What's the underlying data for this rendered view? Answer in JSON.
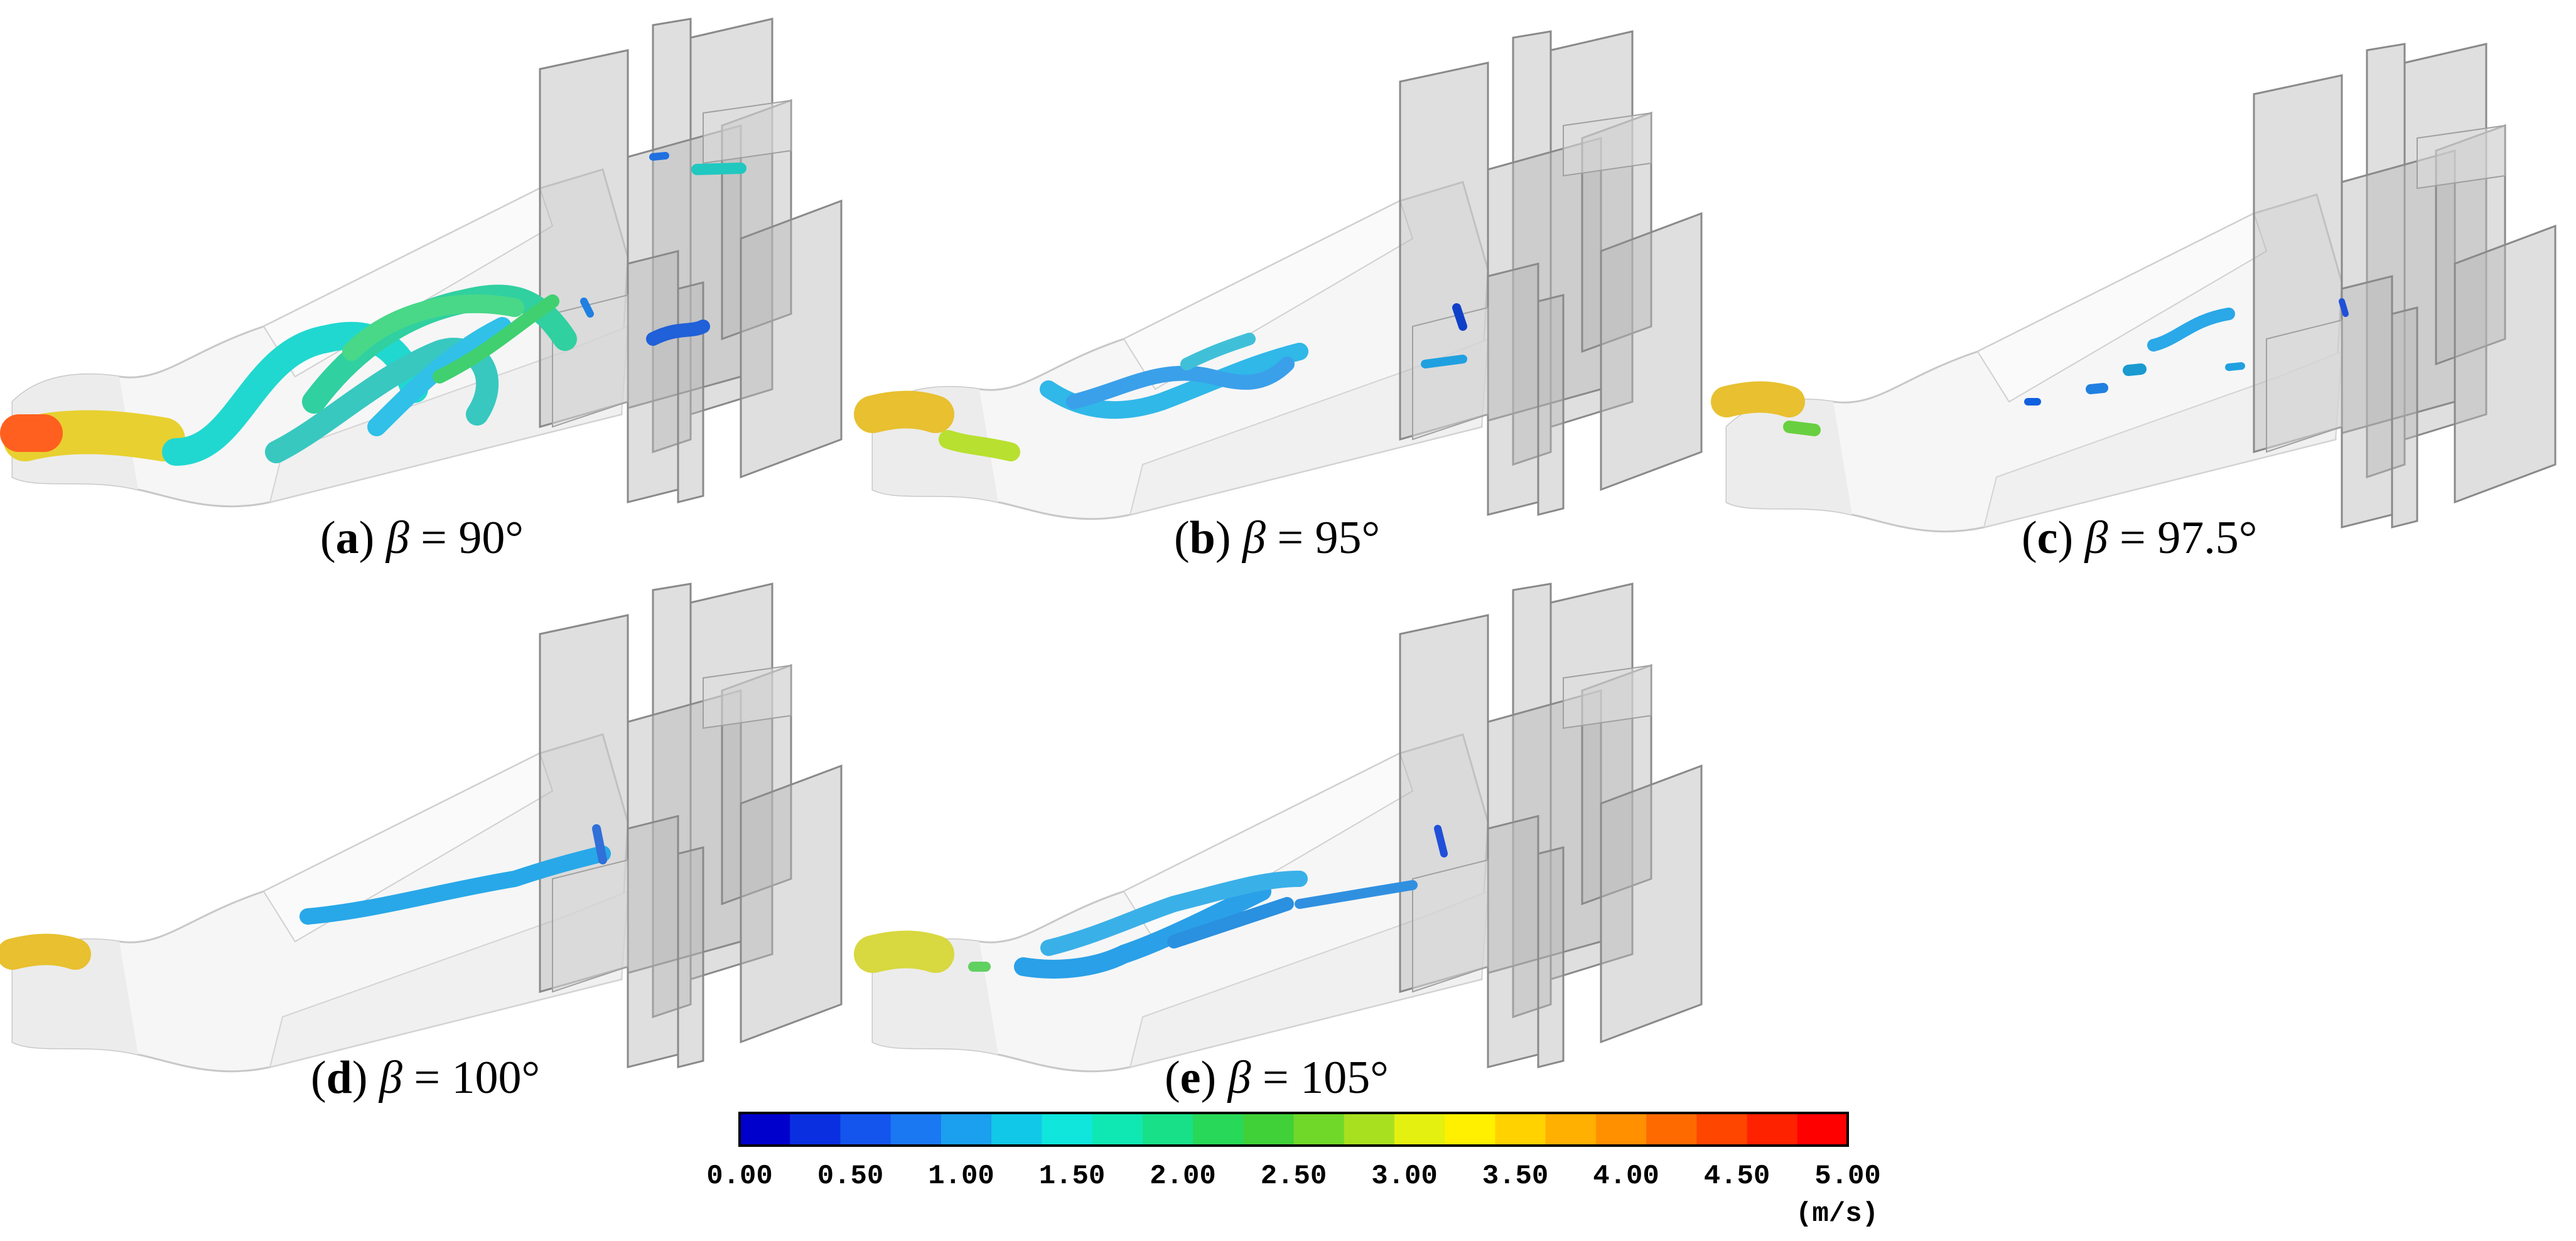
{
  "panels": [
    {
      "letter": "a",
      "symbol": "β",
      "value": "= 90°"
    },
    {
      "letter": "b",
      "symbol": "β",
      "value": "= 95°"
    },
    {
      "letter": "c",
      "symbol": "β",
      "value": "= 97.5°"
    },
    {
      "letter": "d",
      "symbol": "β",
      "value": "= 100°"
    },
    {
      "letter": "e",
      "symbol": "β",
      "value": "= 105°"
    }
  ],
  "colorbar": {
    "ticks": [
      "0.00",
      "0.50",
      "1.00",
      "1.50",
      "2.00",
      "2.50",
      "3.00",
      "3.50",
      "4.00",
      "4.50",
      "5.00"
    ],
    "unit": "(m/s)",
    "min": 0,
    "max": 5,
    "colors": [
      "#0000cc",
      "#0a2fe0",
      "#1455ee",
      "#1a78f2",
      "#1aa0ee",
      "#12c8e8",
      "#10e6dc",
      "#10e8b4",
      "#18e088",
      "#28d858",
      "#40d038",
      "#70d828",
      "#a8e020",
      "#e4f010",
      "#fff000",
      "#ffd200",
      "#ffb000",
      "#ff9000",
      "#ff6a00",
      "#ff4600",
      "#ff2200",
      "#ff0000"
    ]
  }
}
